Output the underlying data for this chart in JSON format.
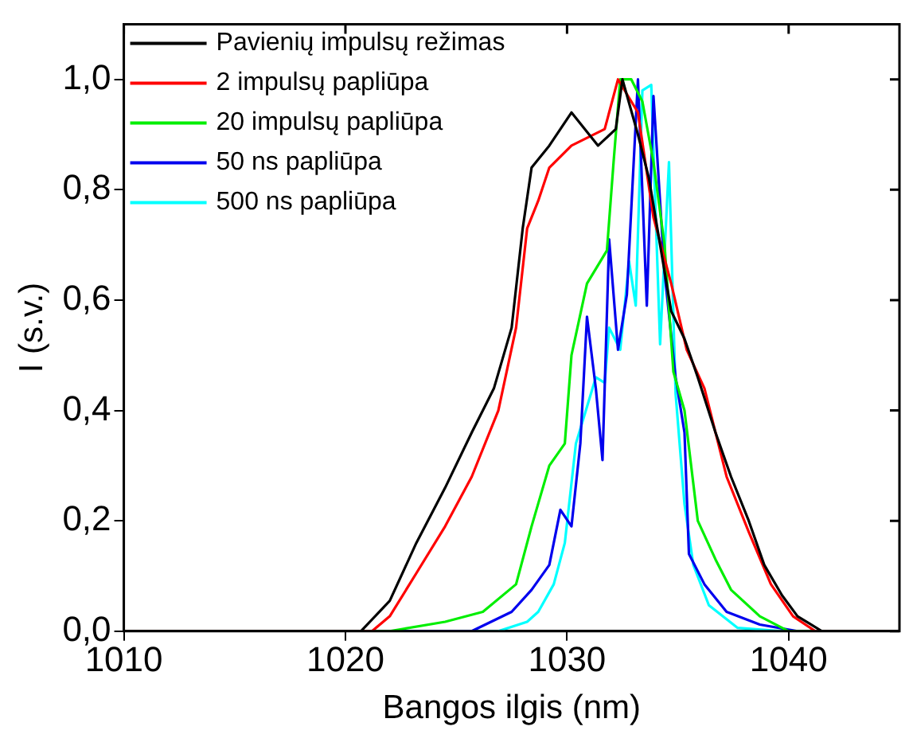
{
  "chart_data": {
    "type": "line",
    "xlabel": "Bangos ilgis (nm)",
    "ylabel": "I (s.v.)",
    "xlim": [
      1010,
      1045
    ],
    "xticks": [
      1010,
      1020,
      1030,
      1040
    ],
    "ylim": [
      0,
      1.1
    ],
    "yticks": [
      {
        "value": 0,
        "label": "0,0"
      },
      {
        "value": 0.2,
        "label": "0,2"
      },
      {
        "value": 0.4,
        "label": "0,4"
      },
      {
        "value": 0.6,
        "label": "0,6"
      },
      {
        "value": 0.8,
        "label": "0,8"
      },
      {
        "value": 1.0,
        "label": "1,0"
      }
    ],
    "legend": "top left",
    "grid": false,
    "line_style": "solid",
    "marker": "none",
    "series": [
      {
        "name": "Pavienių impulsų režimas",
        "color": "#000000",
        "x": [
          1010,
          1020.7,
          1022.0,
          1023.2,
          1024.5,
          1025.7,
          1026.7,
          1027.5,
          1028.0,
          1028.4,
          1029.2,
          1030.2,
          1031.4,
          1032.2,
          1032.5,
          1033.2,
          1033.7,
          1034.2,
          1034.7,
          1035.3,
          1035.9,
          1036.7,
          1037.4,
          1038.2,
          1038.9,
          1039.7,
          1040.4,
          1041.5,
          1045
        ],
        "values": [
          0,
          0,
          0.055,
          0.16,
          0.26,
          0.36,
          0.44,
          0.55,
          0.73,
          0.84,
          0.88,
          0.94,
          0.88,
          0.91,
          1.0,
          0.9,
          0.82,
          0.7,
          0.58,
          0.53,
          0.46,
          0.36,
          0.28,
          0.2,
          0.12,
          0.065,
          0.027,
          0,
          0
        ]
      },
      {
        "name": "2 impulsų papliūpa",
        "color": "#ff0000",
        "x": [
          1010,
          1021.2,
          1022.0,
          1023.2,
          1024.5,
          1025.7,
          1026.9,
          1027.7,
          1028.2,
          1028.7,
          1029.2,
          1030.2,
          1031.7,
          1032.3,
          1033.2,
          1033.9,
          1034.7,
          1035.4,
          1036.2,
          1037.2,
          1038.2,
          1039.2,
          1040.2,
          1041.2,
          1045
        ],
        "values": [
          0,
          0,
          0.027,
          0.105,
          0.19,
          0.28,
          0.4,
          0.55,
          0.73,
          0.78,
          0.84,
          0.88,
          0.91,
          1.0,
          0.94,
          0.75,
          0.63,
          0.51,
          0.44,
          0.28,
          0.18,
          0.085,
          0.027,
          0,
          0
        ]
      },
      {
        "name": "20 impulsų papliūpa",
        "color": "#00ee00",
        "x": [
          1010,
          1022.0,
          1024.5,
          1026.2,
          1027.7,
          1028.4,
          1029.2,
          1029.9,
          1030.2,
          1030.9,
          1031.8,
          1032.1,
          1032.4,
          1032.9,
          1033.4,
          1033.9,
          1034.4,
          1034.8,
          1035.3,
          1035.9,
          1036.7,
          1037.4,
          1038.7,
          1040.0,
          1045
        ],
        "values": [
          0,
          0,
          0.017,
          0.035,
          0.085,
          0.19,
          0.3,
          0.34,
          0.5,
          0.63,
          0.69,
          0.85,
          1.0,
          1.0,
          0.96,
          0.85,
          0.7,
          0.47,
          0.4,
          0.2,
          0.13,
          0.075,
          0.027,
          0,
          0
        ]
      },
      {
        "name": "50 ns papliūpa",
        "color": "#0000ee",
        "x": [
          1010,
          1025.7,
          1027.5,
          1028.4,
          1029.2,
          1029.7,
          1030.2,
          1030.6,
          1030.9,
          1031.3,
          1031.6,
          1031.9,
          1032.3,
          1032.7,
          1033.2,
          1033.6,
          1033.9,
          1034.4,
          1034.9,
          1035.3,
          1035.5,
          1036.2,
          1037.2,
          1038.7,
          1040.4,
          1045
        ],
        "values": [
          0,
          0,
          0.035,
          0.075,
          0.12,
          0.22,
          0.19,
          0.34,
          0.57,
          0.44,
          0.31,
          0.71,
          0.51,
          0.61,
          1.0,
          0.59,
          0.97,
          0.65,
          0.46,
          0.36,
          0.14,
          0.085,
          0.035,
          0.012,
          0,
          0
        ]
      },
      {
        "name": "500 ns papliūpa",
        "color": "#00ffff",
        "x": [
          1010,
          1026.9,
          1028.2,
          1028.7,
          1029.4,
          1029.9,
          1030.4,
          1031.3,
          1031.7,
          1031.9,
          1032.4,
          1032.8,
          1033.1,
          1033.4,
          1033.8,
          1034.2,
          1034.6,
          1034.9,
          1035.3,
          1035.7,
          1036.4,
          1037.7,
          1039.7,
          1045
        ],
        "values": [
          0,
          0,
          0.017,
          0.035,
          0.085,
          0.16,
          0.34,
          0.46,
          0.45,
          0.55,
          0.51,
          0.67,
          0.59,
          0.98,
          0.99,
          0.52,
          0.85,
          0.43,
          0.23,
          0.12,
          0.047,
          0.006,
          0,
          0
        ]
      }
    ]
  }
}
